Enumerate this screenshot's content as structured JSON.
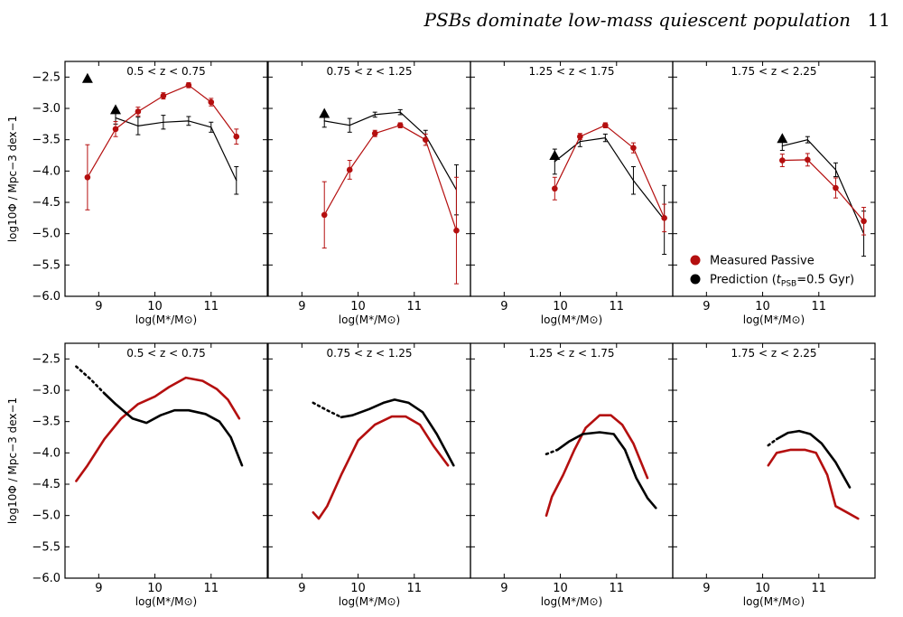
{
  "header": {
    "title": "PSBs dominate low-mass quiescent population",
    "page_number": "11"
  },
  "chart_data": {
    "type": "line",
    "ylabel": "log10Φ / Mpc−3 dex−1",
    "xlabel": "log(M*/M⊙)",
    "xlim": [
      8.4,
      12.0
    ],
    "ylim": [
      -6.0,
      -2.25
    ],
    "xticks": [
      "9",
      "10",
      "11"
    ],
    "yticks": [
      "−2.5",
      "−3.0",
      "−3.5",
      "−4.0",
      "−4.5",
      "−5.0",
      "−5.5",
      "−6.0"
    ],
    "colors": {
      "measured": "#b40f0f",
      "prediction": "#000000"
    },
    "legend": {
      "placement": "bottom-right of top-right panel",
      "measured_label": "Measured Passive",
      "prediction_label_pre": "Prediction (",
      "prediction_label_t": "t",
      "prediction_label_sub": "PSB",
      "prediction_label_post": "=0.5 Gyr)"
    },
    "panels_top": [
      {
        "title": "0.5 < z < 0.75",
        "measured": [
          {
            "x": 8.8,
            "y": -4.1,
            "err": 0.52
          },
          {
            "x": 9.3,
            "y": -3.33,
            "err": 0.12
          },
          {
            "x": 9.7,
            "y": -3.05,
            "err": 0.07
          },
          {
            "x": 10.15,
            "y": -2.8,
            "err": 0.05
          },
          {
            "x": 10.6,
            "y": -2.63,
            "err": 0.04
          },
          {
            "x": 11.0,
            "y": -2.9,
            "err": 0.06
          },
          {
            "x": 11.45,
            "y": -3.45,
            "err": 0.12
          }
        ],
        "prediction": [
          {
            "x": 9.3,
            "y": -3.15,
            "err": 0.1
          },
          {
            "x": 9.7,
            "y": -3.28,
            "err": 0.14
          },
          {
            "x": 10.15,
            "y": -3.22,
            "err": 0.11
          },
          {
            "x": 10.6,
            "y": -3.2,
            "err": 0.07
          },
          {
            "x": 11.0,
            "y": -3.3,
            "err": 0.08
          },
          {
            "x": 11.45,
            "y": -4.15,
            "err": 0.22
          }
        ],
        "limits": [
          {
            "x": 8.8,
            "y": -2.52
          },
          {
            "x": 9.3,
            "y": -3.02
          }
        ]
      },
      {
        "title": "0.75 < z < 1.25",
        "measured": [
          {
            "x": 9.4,
            "y": -4.7,
            "err": 0.53
          },
          {
            "x": 9.85,
            "y": -3.98,
            "err": 0.15
          },
          {
            "x": 10.3,
            "y": -3.4,
            "err": 0.05
          },
          {
            "x": 10.75,
            "y": -3.27,
            "err": 0.04
          },
          {
            "x": 11.2,
            "y": -3.5,
            "err": 0.09
          },
          {
            "x": 11.75,
            "y": -4.95,
            "err": 0.85
          }
        ],
        "prediction": [
          {
            "x": 9.4,
            "y": -3.2,
            "err": 0.1
          },
          {
            "x": 9.85,
            "y": -3.27,
            "err": 0.11
          },
          {
            "x": 10.3,
            "y": -3.1,
            "err": 0.04
          },
          {
            "x": 10.75,
            "y": -3.06,
            "err": 0.04
          },
          {
            "x": 11.2,
            "y": -3.43,
            "err": 0.08
          },
          {
            "x": 11.75,
            "y": -4.3,
            "err": 0.4
          }
        ],
        "limits": [
          {
            "x": 9.4,
            "y": -3.08
          }
        ]
      },
      {
        "title": "1.25 < z < 1.75",
        "measured": [
          {
            "x": 9.9,
            "y": -4.28,
            "err": 0.18
          },
          {
            "x": 10.35,
            "y": -3.45,
            "err": 0.05
          },
          {
            "x": 10.8,
            "y": -3.27,
            "err": 0.04
          },
          {
            "x": 11.3,
            "y": -3.63,
            "err": 0.08
          },
          {
            "x": 11.85,
            "y": -4.75,
            "err": 0.22
          }
        ],
        "prediction": [
          {
            "x": 9.9,
            "y": -3.85,
            "err": 0.2
          },
          {
            "x": 10.35,
            "y": -3.53,
            "err": 0.08
          },
          {
            "x": 10.8,
            "y": -3.47,
            "err": 0.06
          },
          {
            "x": 11.3,
            "y": -4.15,
            "err": 0.22
          },
          {
            "x": 11.85,
            "y": -4.78,
            "err": 0.55
          }
        ],
        "limits": [
          {
            "x": 9.9,
            "y": -3.75
          }
        ]
      },
      {
        "title": "1.75 < z < 2.25",
        "measured": [
          {
            "x": 10.35,
            "y": -3.83,
            "err": 0.1
          },
          {
            "x": 10.8,
            "y": -3.82,
            "err": 0.1
          },
          {
            "x": 11.3,
            "y": -4.27,
            "err": 0.16
          },
          {
            "x": 11.8,
            "y": -4.8,
            "err": 0.22
          }
        ],
        "prediction": [
          {
            "x": 10.35,
            "y": -3.6,
            "err": 0.07
          },
          {
            "x": 10.8,
            "y": -3.5,
            "err": 0.05
          },
          {
            "x": 11.3,
            "y": -3.98,
            "err": 0.11
          },
          {
            "x": 11.8,
            "y": -5.0,
            "err": 0.36
          }
        ],
        "limits": [
          {
            "x": 10.35,
            "y": -3.48
          }
        ]
      }
    ],
    "panels_bottom": [
      {
        "title": "0.5 < z < 0.75",
        "measured": [
          [
            8.6,
            -4.45
          ],
          [
            8.8,
            -4.2
          ],
          [
            9.1,
            -3.78
          ],
          [
            9.4,
            -3.45
          ],
          [
            9.7,
            -3.22
          ],
          [
            10.0,
            -3.1
          ],
          [
            10.25,
            -2.95
          ],
          [
            10.55,
            -2.8
          ],
          [
            10.85,
            -2.85
          ],
          [
            11.1,
            -2.98
          ],
          [
            11.3,
            -3.15
          ],
          [
            11.5,
            -3.45
          ]
        ],
        "prediction_dotted": [
          [
            8.6,
            -2.62
          ],
          [
            8.85,
            -2.82
          ],
          [
            9.1,
            -3.05
          ]
        ],
        "prediction": [
          [
            9.1,
            -3.05
          ],
          [
            9.3,
            -3.22
          ],
          [
            9.6,
            -3.45
          ],
          [
            9.85,
            -3.52
          ],
          [
            10.1,
            -3.4
          ],
          [
            10.35,
            -3.32
          ],
          [
            10.6,
            -3.32
          ],
          [
            10.9,
            -3.38
          ],
          [
            11.15,
            -3.5
          ],
          [
            11.35,
            -3.75
          ],
          [
            11.55,
            -4.2
          ]
        ]
      },
      {
        "title": "0.75 < z < 1.25",
        "measured": [
          [
            9.2,
            -4.95
          ],
          [
            9.3,
            -5.05
          ],
          [
            9.45,
            -4.85
          ],
          [
            9.7,
            -4.35
          ],
          [
            10.0,
            -3.8
          ],
          [
            10.3,
            -3.55
          ],
          [
            10.6,
            -3.42
          ],
          [
            10.85,
            -3.42
          ],
          [
            11.1,
            -3.55
          ],
          [
            11.35,
            -3.9
          ],
          [
            11.6,
            -4.2
          ]
        ],
        "prediction_dotted": [
          [
            9.2,
            -3.2
          ],
          [
            9.45,
            -3.32
          ],
          [
            9.7,
            -3.43
          ]
        ],
        "prediction": [
          [
            9.7,
            -3.43
          ],
          [
            9.9,
            -3.4
          ],
          [
            10.2,
            -3.3
          ],
          [
            10.45,
            -3.2
          ],
          [
            10.65,
            -3.15
          ],
          [
            10.9,
            -3.2
          ],
          [
            11.15,
            -3.35
          ],
          [
            11.4,
            -3.7
          ],
          [
            11.7,
            -4.2
          ]
        ]
      },
      {
        "title": "1.25 < z < 1.75",
        "measured": [
          [
            9.75,
            -5.0
          ],
          [
            9.85,
            -4.7
          ],
          [
            10.05,
            -4.35
          ],
          [
            10.25,
            -3.95
          ],
          [
            10.45,
            -3.6
          ],
          [
            10.7,
            -3.4
          ],
          [
            10.9,
            -3.4
          ],
          [
            11.1,
            -3.55
          ],
          [
            11.3,
            -3.85
          ],
          [
            11.55,
            -4.4
          ]
        ],
        "prediction_dotted": [
          [
            9.75,
            -4.02
          ],
          [
            9.95,
            -3.95
          ]
        ],
        "prediction": [
          [
            9.95,
            -3.95
          ],
          [
            10.15,
            -3.82
          ],
          [
            10.4,
            -3.7
          ],
          [
            10.7,
            -3.67
          ],
          [
            10.95,
            -3.7
          ],
          [
            11.15,
            -3.95
          ],
          [
            11.35,
            -4.4
          ],
          [
            11.55,
            -4.72
          ],
          [
            11.7,
            -4.88
          ]
        ]
      },
      {
        "title": "1.75 < z < 2.25",
        "measured": [
          [
            10.1,
            -4.2
          ],
          [
            10.25,
            -4.0
          ],
          [
            10.5,
            -3.95
          ],
          [
            10.75,
            -3.95
          ],
          [
            10.95,
            -4.0
          ],
          [
            11.15,
            -4.35
          ],
          [
            11.3,
            -4.85
          ],
          [
            11.5,
            -4.95
          ],
          [
            11.7,
            -5.05
          ]
        ],
        "prediction_dotted": [
          [
            10.1,
            -3.88
          ],
          [
            10.25,
            -3.78
          ]
        ],
        "prediction": [
          [
            10.25,
            -3.78
          ],
          [
            10.45,
            -3.68
          ],
          [
            10.65,
            -3.65
          ],
          [
            10.85,
            -3.7
          ],
          [
            11.05,
            -3.85
          ],
          [
            11.3,
            -4.15
          ],
          [
            11.55,
            -4.55
          ]
        ]
      }
    ]
  }
}
